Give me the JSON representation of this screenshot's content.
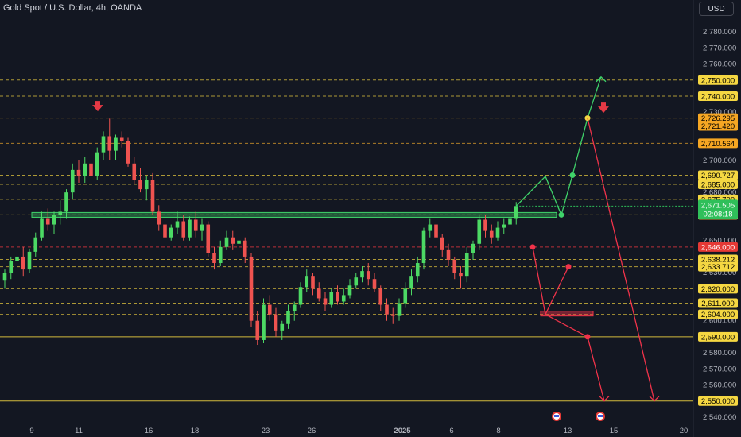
{
  "header": {
    "title": "Gold Spot / U.S. Dollar, 4h, OANDA",
    "currency_button": "USD"
  },
  "colors": {
    "background": "#131722",
    "up": "#26a69a",
    "up_bright": "#4cd964",
    "down": "#ef5350",
    "text": "#b2b5be",
    "yellow_line": "#f5d742",
    "green_path": "#3fd36a",
    "red_path": "#f0334a",
    "support_zone": "#3fd36a",
    "demand_zone": "#f0334a"
  },
  "chart_data": {
    "type": "candlestick",
    "y_axis": {
      "ticks": [
        "2,780.000",
        "2,770.000",
        "2,760.000",
        "2,730.000",
        "2,700.000",
        "2,690.000",
        "2,680.000",
        "2,650.000",
        "2,630.000",
        "2,600.000",
        "2,580.000",
        "2,570.000",
        "2,560.000",
        "2,540.000"
      ],
      "tick_values": [
        2780,
        2770,
        2760,
        2730,
        2700,
        2690,
        2680,
        2650,
        2630,
        2600,
        2580,
        2570,
        2560,
        2540
      ],
      "range": [
        2535,
        2790
      ]
    },
    "x_axis": {
      "ticks": [
        "9",
        "11",
        "16",
        "18",
        "23",
        "26",
        "2025",
        "6",
        "8",
        "13",
        "15",
        "20"
      ]
    },
    "price_levels": [
      {
        "label": "2,750.000",
        "value": 2750,
        "style": "yellow"
      },
      {
        "label": "2,740.000",
        "value": 2740,
        "style": "yellow"
      },
      {
        "label": "2,726.295",
        "value": 2726.295,
        "style": "orange"
      },
      {
        "label": "2,721.420",
        "value": 2721.42,
        "style": "orange"
      },
      {
        "label": "2,710.564",
        "value": 2710.564,
        "style": "orange"
      },
      {
        "label": "2,690.727",
        "value": 2690.727,
        "style": "yellow"
      },
      {
        "label": "2,685.000",
        "value": 2685,
        "style": "yellow"
      },
      {
        "label": "2,675.700",
        "value": 2675.7,
        "style": "yellow"
      },
      {
        "label": "2,666.000",
        "value": 2666,
        "style": "yellow"
      },
      {
        "label": "2,646.000",
        "value": 2646,
        "style": "red"
      },
      {
        "label": "2,638.212",
        "value": 2638.212,
        "style": "yellow"
      },
      {
        "label": "2,633.712",
        "value": 2633.712,
        "style": "yellow"
      },
      {
        "label": "2,620.000",
        "value": 2620,
        "style": "yellow"
      },
      {
        "label": "2,611.000",
        "value": 2611,
        "style": "yellow"
      },
      {
        "label": "2,604.000",
        "value": 2604,
        "style": "yellow"
      },
      {
        "label": "2,590.000",
        "value": 2590,
        "style": "yellow_solid"
      },
      {
        "label": "2,550.000",
        "value": 2550,
        "style": "yellow_solid"
      }
    ],
    "current_price": {
      "price": "2,671.505",
      "countdown": "02:08:18",
      "value": 2671.505
    },
    "candles": [
      [
        2625,
        2632,
        2620,
        2630
      ],
      [
        2630,
        2640,
        2626,
        2637
      ],
      [
        2637,
        2644,
        2632,
        2640
      ],
      [
        2640,
        2646,
        2628,
        2632
      ],
      [
        2632,
        2645,
        2630,
        2643
      ],
      [
        2643,
        2655,
        2640,
        2652
      ],
      [
        2652,
        2668,
        2650,
        2664
      ],
      [
        2664,
        2670,
        2656,
        2660
      ],
      [
        2660,
        2668,
        2654,
        2666
      ],
      [
        2666,
        2675,
        2660,
        2668
      ],
      [
        2668,
        2682,
        2664,
        2680
      ],
      [
        2680,
        2698,
        2676,
        2694
      ],
      [
        2694,
        2700,
        2686,
        2690
      ],
      [
        2690,
        2702,
        2686,
        2698
      ],
      [
        2698,
        2703,
        2688,
        2690
      ],
      [
        2690,
        2708,
        2688,
        2705
      ],
      [
        2705,
        2718,
        2700,
        2715
      ],
      [
        2715,
        2726,
        2700,
        2706
      ],
      [
        2706,
        2716,
        2700,
        2714
      ],
      [
        2714,
        2718,
        2708,
        2712
      ],
      [
        2712,
        2714,
        2696,
        2698
      ],
      [
        2698,
        2702,
        2685,
        2688
      ],
      [
        2688,
        2695,
        2680,
        2682
      ],
      [
        2682,
        2690,
        2675,
        2688
      ],
      [
        2688,
        2692,
        2666,
        2668
      ],
      [
        2668,
        2672,
        2656,
        2660
      ],
      [
        2660,
        2662,
        2648,
        2652
      ],
      [
        2652,
        2660,
        2650,
        2658
      ],
      [
        2658,
        2668,
        2654,
        2662
      ],
      [
        2662,
        2666,
        2650,
        2652
      ],
      [
        2652,
        2665,
        2650,
        2663
      ],
      [
        2663,
        2668,
        2652,
        2656
      ],
      [
        2656,
        2664,
        2650,
        2660
      ],
      [
        2660,
        2662,
        2640,
        2642
      ],
      [
        2642,
        2646,
        2632,
        2636
      ],
      [
        2636,
        2650,
        2634,
        2646
      ],
      [
        2646,
        2656,
        2644,
        2652
      ],
      [
        2652,
        2656,
        2644,
        2648
      ],
      [
        2648,
        2654,
        2642,
        2650
      ],
      [
        2650,
        2652,
        2636,
        2640
      ],
      [
        2640,
        2642,
        2596,
        2600
      ],
      [
        2600,
        2606,
        2585,
        2588
      ],
      [
        2588,
        2614,
        2586,
        2610
      ],
      [
        2610,
        2616,
        2600,
        2604
      ],
      [
        2604,
        2608,
        2590,
        2594
      ],
      [
        2594,
        2600,
        2588,
        2598
      ],
      [
        2598,
        2610,
        2595,
        2606
      ],
      [
        2606,
        2612,
        2600,
        2610
      ],
      [
        2610,
        2624,
        2608,
        2621
      ],
      [
        2621,
        2632,
        2618,
        2628
      ],
      [
        2628,
        2630,
        2616,
        2620
      ],
      [
        2620,
        2624,
        2612,
        2614
      ],
      [
        2614,
        2618,
        2606,
        2610
      ],
      [
        2610,
        2620,
        2608,
        2618
      ],
      [
        2618,
        2622,
        2610,
        2612
      ],
      [
        2612,
        2620,
        2610,
        2616
      ],
      [
        2616,
        2626,
        2614,
        2622
      ],
      [
        2622,
        2630,
        2620,
        2627
      ],
      [
        2627,
        2634,
        2624,
        2631
      ],
      [
        2631,
        2636,
        2622,
        2626
      ],
      [
        2626,
        2630,
        2618,
        2620
      ],
      [
        2620,
        2622,
        2606,
        2610
      ],
      [
        2610,
        2614,
        2600,
        2604
      ],
      [
        2604,
        2608,
        2598,
        2603
      ],
      [
        2603,
        2614,
        2600,
        2611
      ],
      [
        2611,
        2624,
        2608,
        2620
      ],
      [
        2620,
        2632,
        2616,
        2628
      ],
      [
        2628,
        2640,
        2624,
        2636
      ],
      [
        2636,
        2658,
        2632,
        2656
      ],
      [
        2656,
        2664,
        2652,
        2660
      ],
      [
        2660,
        2662,
        2648,
        2652
      ],
      [
        2652,
        2654,
        2640,
        2644
      ],
      [
        2644,
        2648,
        2634,
        2638
      ],
      [
        2638,
        2640,
        2626,
        2630
      ],
      [
        2630,
        2634,
        2620,
        2628
      ],
      [
        2628,
        2646,
        2624,
        2642
      ],
      [
        2642,
        2650,
        2638,
        2648
      ],
      [
        2648,
        2666,
        2644,
        2663
      ],
      [
        2663,
        2666,
        2652,
        2656
      ],
      [
        2656,
        2660,
        2648,
        2652
      ],
      [
        2652,
        2662,
        2650,
        2658
      ],
      [
        2658,
        2664,
        2654,
        2660
      ],
      [
        2660,
        2666,
        2656,
        2664
      ],
      [
        2664,
        2674,
        2660,
        2671.5
      ]
    ],
    "annotations": [
      {
        "type": "arrow_down_marker",
        "value": 2733
      },
      {
        "type": "arrow_down_marker",
        "value": 2732
      },
      {
        "type": "support_zone",
        "from": 2664.5,
        "to": 2667.5
      },
      {
        "type": "demand_zone",
        "from": 2603,
        "to": 2606
      },
      {
        "type": "green_projection",
        "points": [
          [
            2671.5
          ],
          [
            2690
          ],
          [
            2666
          ],
          [
            2690.727
          ],
          [
            2726.295
          ],
          [
            2752
          ]
        ]
      },
      {
        "type": "red_projection_short",
        "points": [
          [
            2646
          ],
          [
            2604
          ],
          [
            2633.712
          ],
          [
            2604
          ],
          [
            2590
          ],
          [
            2550
          ]
        ]
      },
      {
        "type": "red_projection_long",
        "points": [
          [
            2726.295
          ],
          [
            2550
          ]
        ]
      }
    ]
  }
}
